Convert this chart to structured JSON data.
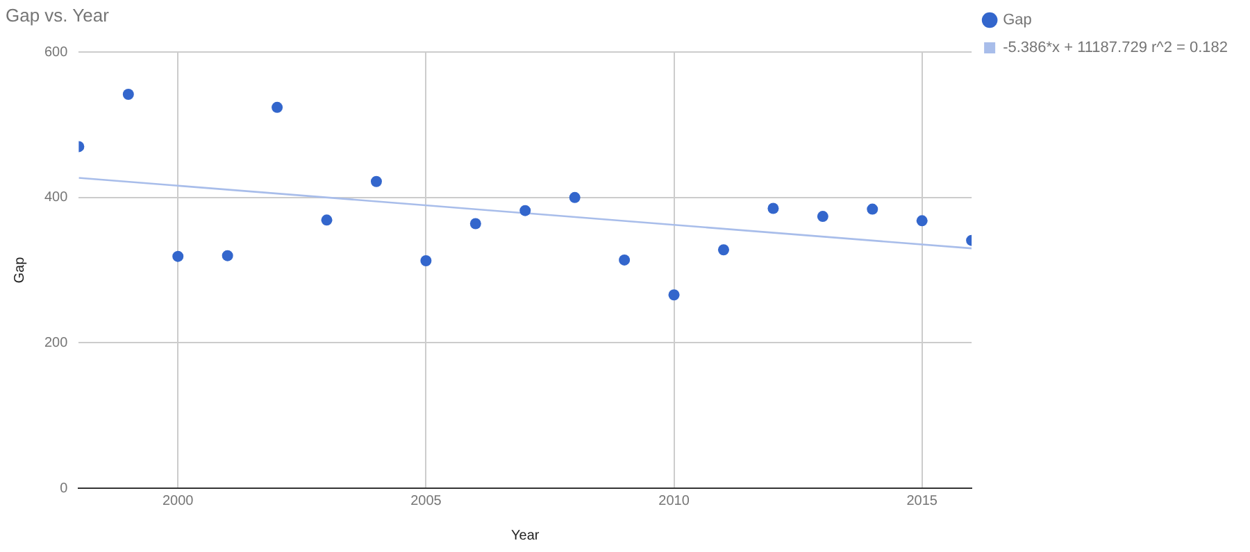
{
  "chart_data": {
    "type": "scatter",
    "title": "Gap vs. Year",
    "xlabel": "Year",
    "ylabel": "Gap",
    "x": [
      1998,
      1999,
      2000,
      2001,
      2002,
      2003,
      2004,
      2005,
      2006,
      2007,
      2008,
      2009,
      2010,
      2011,
      2012,
      2013,
      2014,
      2015,
      2016
    ],
    "series": [
      {
        "name": "Gap",
        "color": "#3366cc",
        "marker": "circle",
        "values": [
          470,
          542,
          319,
          320,
          524,
          369,
          422,
          313,
          364,
          382,
          400,
          314,
          266,
          328,
          385,
          374,
          384,
          368,
          341
        ]
      },
      {
        "name": "-5.386*x + 11187.729 r^2 = 0.182",
        "type": "line",
        "color": "#a8bdea",
        "marker": "none",
        "x": [
          1998,
          2016
        ],
        "values": [
          427,
          330
        ]
      }
    ],
    "xlim": [
      1998,
      2016
    ],
    "xticks": [
      2000,
      2005,
      2010,
      2015
    ],
    "ylim": [
      0,
      600
    ],
    "yticks": [
      0,
      200,
      400,
      600
    ],
    "grid": true,
    "legend": "top right"
  }
}
